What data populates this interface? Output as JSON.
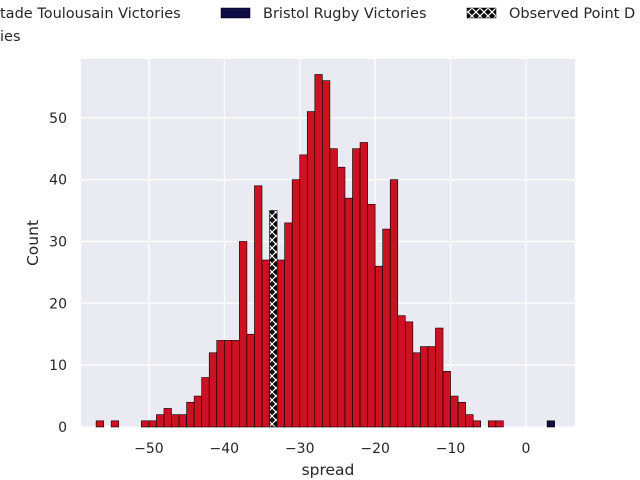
{
  "chart_data": {
    "type": "bar",
    "subtype": "histogram",
    "xlabel": "spread",
    "ylabel": "Count",
    "xlim": [
      -59,
      6.5
    ],
    "ylim": [
      0,
      59.5
    ],
    "x_ticks": [
      -50,
      -40,
      -30,
      -20,
      -10,
      0
    ],
    "x_tick_labels": [
      "−50",
      "−40",
      "−30",
      "−20",
      "−10",
      "0"
    ],
    "y_ticks": [
      0,
      10,
      20,
      30,
      40,
      50
    ],
    "y_tick_labels": [
      "0",
      "10",
      "20",
      "30",
      "40",
      "50"
    ],
    "grid": true,
    "bin_width": 1,
    "legend": {
      "placement": "top (clipped at left and right edges)",
      "row1": [
        {
          "label": "Stade Toulousain Victories",
          "display": "tade Toulousain Victories",
          "color": "#cc1122",
          "pattern": "solid"
        },
        {
          "label": "Bristol Rugby Victories",
          "display": "Bristol Rugby Victories",
          "color": "#0d0d45",
          "pattern": "solid"
        },
        {
          "label": "Observed Point Differential",
          "display": "Observed Point D",
          "color": "#0d0d0d",
          "pattern": "x-hatch"
        }
      ],
      "row2": {
        "display": "ies"
      }
    },
    "series": [
      {
        "name": "Stade Toulousain Victories",
        "color": "#cc1122",
        "bins": [
          [
            -57,
            1
          ],
          [
            -55,
            1
          ],
          [
            -51,
            1
          ],
          [
            -50,
            1
          ],
          [
            -49,
            2
          ],
          [
            -48,
            3
          ],
          [
            -47,
            2
          ],
          [
            -46,
            2
          ],
          [
            -45,
            4
          ],
          [
            -44,
            5
          ],
          [
            -43,
            8
          ],
          [
            -42,
            12
          ],
          [
            -41,
            14
          ],
          [
            -40,
            14
          ],
          [
            -39,
            14
          ],
          [
            -38,
            30
          ],
          [
            -37,
            15
          ],
          [
            -36,
            39
          ],
          [
            -35,
            27
          ],
          [
            -33,
            27
          ],
          [
            -32,
            33
          ],
          [
            -31,
            40
          ],
          [
            -30,
            44
          ],
          [
            -29,
            51
          ],
          [
            -28,
            57
          ],
          [
            -27,
            56
          ],
          [
            -26,
            45
          ],
          [
            -25,
            42
          ],
          [
            -24,
            37
          ],
          [
            -23,
            45
          ],
          [
            -22,
            46
          ],
          [
            -21,
            36
          ],
          [
            -20,
            26
          ],
          [
            -19,
            32
          ],
          [
            -18,
            40
          ],
          [
            -17,
            18
          ],
          [
            -16,
            17
          ],
          [
            -15,
            12
          ],
          [
            -14,
            13
          ],
          [
            -13,
            13
          ],
          [
            -12,
            16
          ],
          [
            -11,
            9
          ],
          [
            -10,
            5
          ],
          [
            -9,
            4
          ],
          [
            -8,
            2
          ],
          [
            -7,
            1
          ],
          [
            -5,
            1
          ],
          [
            -4,
            1
          ]
        ]
      },
      {
        "name": "Bristol Rugby Victories",
        "color": "#0d0d45",
        "bins": [
          [
            2.8,
            1
          ]
        ]
      },
      {
        "name": "Observed Point Differential",
        "color": "#0d0d0d",
        "pattern": "x-hatch",
        "bins": [
          [
            -34,
            35
          ]
        ]
      }
    ]
  }
}
